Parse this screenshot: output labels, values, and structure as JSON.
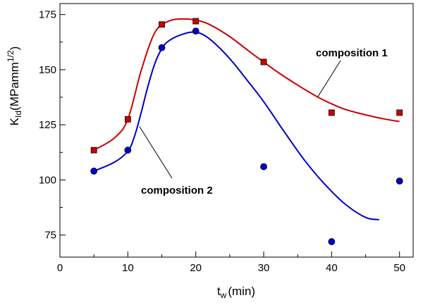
{
  "chart_data": {
    "type": "scatter",
    "xlabel": {
      "main": "t",
      "sub": "w",
      "unit": "(min)"
    },
    "ylabel": {
      "main": "K",
      "sub": "Id",
      "unit_pre": "(MPamm",
      "sup": "1/2",
      "unit_post": ")"
    },
    "xlim": [
      0,
      52
    ],
    "ylim": [
      65,
      180
    ],
    "x_ticks": [
      0,
      10,
      20,
      30,
      40,
      50
    ],
    "x_tick_labels": [
      "0",
      "10",
      "20",
      "30",
      "40",
      "50"
    ],
    "x_minor_ticks": [
      5,
      15,
      25,
      35,
      45
    ],
    "y_ticks": [
      75,
      100,
      125,
      150,
      175
    ],
    "y_tick_labels": [
      "75",
      "100",
      "125",
      "150",
      "175"
    ],
    "y_minor_ticks": [
      87.5,
      112.5,
      137.5,
      162.5
    ],
    "grid": false,
    "series": [
      {
        "name": "composition 1",
        "color": "#cc0000",
        "marker": "square",
        "x": [
          5,
          10,
          15,
          20,
          30,
          40,
          50
        ],
        "y": [
          113.5,
          127.5,
          170.5,
          172,
          153.5,
          130.5,
          130.5
        ],
        "curve": {
          "x": [
            5,
            8,
            10,
            12,
            14,
            16,
            18,
            20,
            22,
            25,
            28,
            30,
            32,
            35,
            38,
            40,
            42,
            45,
            48,
            50
          ],
          "y": [
            113.5,
            119,
            127.5,
            150,
            167,
            172,
            173,
            172.5,
            170.5,
            165,
            158,
            153.5,
            149,
            143,
            137.5,
            134.5,
            132,
            129.5,
            127.5,
            126.5
          ]
        }
      },
      {
        "name": "composition 2",
        "color": "#0000cc",
        "marker": "circle",
        "x": [
          5,
          10,
          15,
          20,
          30,
          40,
          50
        ],
        "y": [
          104,
          113.5,
          160,
          167.5,
          106,
          72,
          99.5
        ],
        "curve": {
          "x": [
            5,
            8,
            10,
            11,
            12,
            13,
            14,
            15,
            16,
            18,
            20,
            22,
            25,
            28,
            30,
            33,
            36,
            39,
            42,
            45,
            47
          ],
          "y": [
            104,
            108,
            113,
            120,
            131,
            143,
            153,
            159.5,
            163,
            166,
            167,
            164,
            155,
            143.5,
            135.5,
            122,
            109,
            98,
            89,
            83,
            82
          ]
        }
      }
    ],
    "annotations": [
      {
        "text": "composition 1",
        "series": 0,
        "pointer_x": 38
      },
      {
        "text": "composition 2",
        "series": 1,
        "pointer_x": 11.5
      }
    ]
  }
}
